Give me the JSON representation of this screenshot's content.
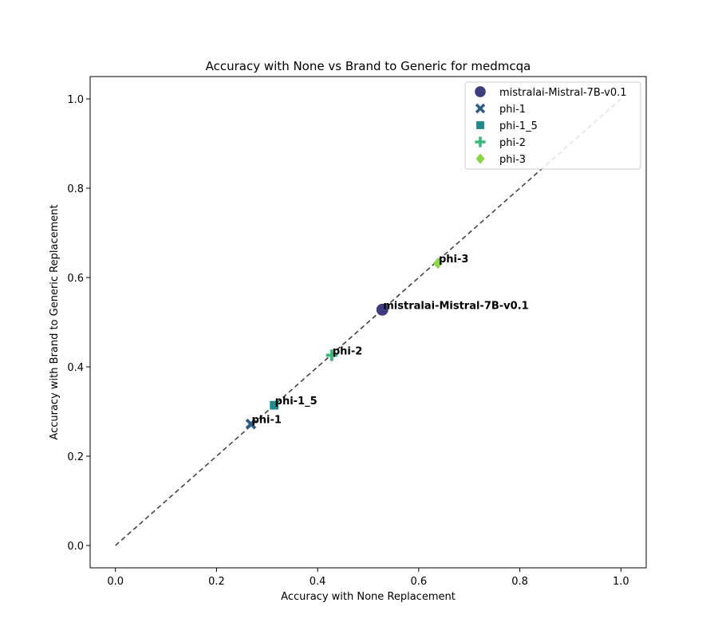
{
  "chart_data": {
    "type": "scatter",
    "title": "Accuracy with None vs Brand to Generic for medmcqa",
    "xlabel": "Accuracy with None Replacement",
    "ylabel": "Accuracy with Brand to Generic Replacement",
    "xlim": [
      -0.05,
      1.05
    ],
    "ylim": [
      -0.05,
      1.05
    ],
    "x_ticks": [
      "0.0",
      "0.2",
      "0.4",
      "0.6",
      "0.8",
      "1.0"
    ],
    "y_ticks": [
      "0.0",
      "0.2",
      "0.4",
      "0.6",
      "0.8",
      "1.0"
    ],
    "x_tick_values": [
      0.0,
      0.2,
      0.4,
      0.6,
      0.8,
      1.0
    ],
    "y_tick_values": [
      0.0,
      0.2,
      0.4,
      0.6,
      0.8,
      1.0
    ],
    "grid": false,
    "reference_line": {
      "from": [
        0,
        0
      ],
      "to": [
        1,
        1
      ],
      "style": "dashed",
      "color": "#444444"
    },
    "legend_position": "top-right",
    "series": [
      {
        "name": "mistralai-Mistral-7B-v0.1",
        "marker": "circle",
        "color": "#3f3b7f",
        "x": 0.528,
        "y": 0.528,
        "label": "mistralai-Mistral-7B-v0.1"
      },
      {
        "name": "phi-1",
        "marker": "x",
        "color": "#2f5b8a",
        "x": 0.268,
        "y": 0.272,
        "label": "phi-1"
      },
      {
        "name": "phi-1_5",
        "marker": "square",
        "color": "#23898c",
        "x": 0.314,
        "y": 0.314,
        "label": "phi-1_5"
      },
      {
        "name": "phi-2",
        "marker": "plus",
        "color": "#3cb878",
        "x": 0.428,
        "y": 0.426,
        "label": "phi-2"
      },
      {
        "name": "phi-3",
        "marker": "diamond",
        "color": "#8cd646",
        "x": 0.638,
        "y": 0.632,
        "label": "phi-3"
      }
    ]
  }
}
